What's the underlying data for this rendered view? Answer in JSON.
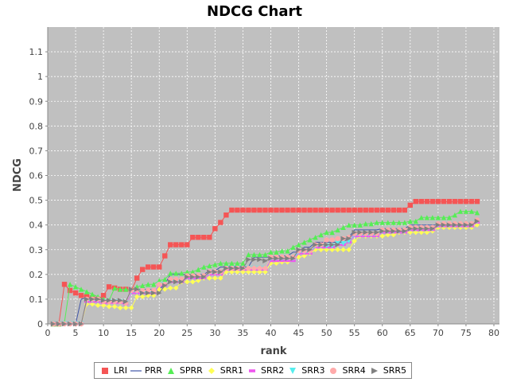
{
  "chart_data": {
    "type": "line",
    "title": "NDCG Chart",
    "xlabel": "rank",
    "ylabel": "NDCG",
    "xlim": [
      0,
      81
    ],
    "ylim": [
      0,
      1.2
    ],
    "xticks": [
      0,
      5,
      10,
      15,
      20,
      25,
      30,
      35,
      40,
      45,
      50,
      55,
      60,
      65,
      70,
      75,
      80
    ],
    "yticks": [
      0,
      0.1,
      0.2,
      0.3,
      0.4,
      0.5,
      0.6,
      0.7,
      0.8,
      0.9,
      1,
      1.1
    ],
    "grid": true,
    "legend_position": "bottom",
    "plot_background": "#c0c0c0",
    "series": [
      {
        "name": "LRI",
        "color": "#f55555",
        "marker": "square",
        "steps": [
          [
            1,
            0
          ],
          [
            2,
            0
          ],
          [
            3,
            0.16
          ],
          [
            4,
            0.135
          ],
          [
            5,
            0.125
          ],
          [
            6,
            0.115
          ],
          [
            7,
            0.11
          ],
          [
            8,
            0.105
          ],
          [
            9,
            0.1
          ],
          [
            10,
            0.115
          ],
          [
            11,
            0.15
          ],
          [
            12,
            0.145
          ],
          [
            13,
            0.14
          ],
          [
            14,
            0.14
          ],
          [
            15,
            0.135
          ],
          [
            16,
            0.185
          ],
          [
            17,
            0.22
          ],
          [
            18,
            0.23
          ],
          [
            19,
            0.23
          ],
          [
            20,
            0.23
          ],
          [
            21,
            0.275
          ],
          [
            22,
            0.32
          ],
          [
            23,
            0.32
          ],
          [
            24,
            0.32
          ],
          [
            25,
            0.32
          ],
          [
            26,
            0.35
          ],
          [
            27,
            0.35
          ],
          [
            28,
            0.35
          ],
          [
            29,
            0.35
          ],
          [
            30,
            0.385
          ],
          [
            31,
            0.41
          ],
          [
            32,
            0.44
          ],
          [
            33,
            0.46
          ],
          [
            57,
            0.46
          ],
          [
            58,
            0.46
          ],
          [
            64,
            0.46
          ],
          [
            65,
            0.48
          ],
          [
            66,
            0.495
          ],
          [
            77,
            0.495
          ]
        ]
      },
      {
        "name": "PRR",
        "color": "#4055a8",
        "marker": "none",
        "steps": [
          [
            1,
            0
          ],
          [
            5,
            0
          ],
          [
            6,
            0.1
          ],
          [
            7,
            0.105
          ],
          [
            8,
            0.1
          ],
          [
            9,
            0.095
          ],
          [
            10,
            0.09
          ],
          [
            11,
            0.09
          ],
          [
            12,
            0.085
          ],
          [
            13,
            0.085
          ],
          [
            14,
            0.085
          ],
          [
            15,
            0.14
          ],
          [
            21,
            0.16
          ],
          [
            22,
            0.2
          ],
          [
            25,
            0.2
          ],
          [
            29,
            0.215
          ],
          [
            31,
            0.23
          ],
          [
            33,
            0.23
          ],
          [
            36,
            0.23
          ],
          [
            37,
            0.27
          ],
          [
            40,
            0.27
          ],
          [
            41,
            0.275
          ],
          [
            44,
            0.29
          ],
          [
            46,
            0.31
          ],
          [
            48,
            0.33
          ],
          [
            54,
            0.35
          ],
          [
            55,
            0.38
          ],
          [
            60,
            0.385
          ],
          [
            65,
            0.4
          ],
          [
            72,
            0.4
          ],
          [
            77,
            0.42
          ]
        ]
      },
      {
        "name": "SPRR",
        "color": "#55ee55",
        "marker": "triangle-up",
        "steps": [
          [
            1,
            0
          ],
          [
            2,
            0
          ],
          [
            3,
            0.005
          ],
          [
            4,
            0.16
          ],
          [
            5,
            0.15
          ],
          [
            6,
            0.14
          ],
          [
            7,
            0.13
          ],
          [
            8,
            0.12
          ],
          [
            9,
            0.11
          ],
          [
            10,
            0.1
          ],
          [
            11,
            0.095
          ],
          [
            12,
            0.145
          ],
          [
            13,
            0.14
          ],
          [
            14,
            0.14
          ],
          [
            15,
            0.135
          ],
          [
            16,
            0.15
          ],
          [
            17,
            0.155
          ],
          [
            18,
            0.16
          ],
          [
            19,
            0.16
          ],
          [
            20,
            0.175
          ],
          [
            21,
            0.18
          ],
          [
            22,
            0.205
          ],
          [
            23,
            0.205
          ],
          [
            24,
            0.205
          ],
          [
            25,
            0.21
          ],
          [
            26,
            0.21
          ],
          [
            27,
            0.22
          ],
          [
            28,
            0.23
          ],
          [
            29,
            0.235
          ],
          [
            30,
            0.24
          ],
          [
            31,
            0.245
          ],
          [
            32,
            0.245
          ],
          [
            33,
            0.245
          ],
          [
            34,
            0.245
          ],
          [
            35,
            0.245
          ],
          [
            36,
            0.28
          ],
          [
            37,
            0.28
          ],
          [
            38,
            0.28
          ],
          [
            39,
            0.28
          ],
          [
            40,
            0.29
          ],
          [
            41,
            0.29
          ],
          [
            42,
            0.295
          ],
          [
            43,
            0.295
          ],
          [
            44,
            0.31
          ],
          [
            45,
            0.32
          ],
          [
            46,
            0.33
          ],
          [
            47,
            0.34
          ],
          [
            48,
            0.35
          ],
          [
            49,
            0.36
          ],
          [
            50,
            0.37
          ],
          [
            51,
            0.37
          ],
          [
            52,
            0.38
          ],
          [
            53,
            0.39
          ],
          [
            54,
            0.4
          ],
          [
            55,
            0.4
          ],
          [
            56,
            0.4
          ],
          [
            57,
            0.405
          ],
          [
            58,
            0.405
          ],
          [
            59,
            0.41
          ],
          [
            60,
            0.41
          ],
          [
            61,
            0.41
          ],
          [
            62,
            0.41
          ],
          [
            63,
            0.41
          ],
          [
            64,
            0.41
          ],
          [
            65,
            0.415
          ],
          [
            66,
            0.415
          ],
          [
            67,
            0.43
          ],
          [
            68,
            0.43
          ],
          [
            69,
            0.43
          ],
          [
            70,
            0.43
          ],
          [
            71,
            0.43
          ],
          [
            72,
            0.43
          ],
          [
            73,
            0.44
          ],
          [
            74,
            0.455
          ],
          [
            75,
            0.455
          ],
          [
            76,
            0.455
          ],
          [
            77,
            0.45
          ]
        ]
      },
      {
        "name": "SRR1",
        "color": "#ffff55",
        "marker": "diamond",
        "steps": [
          [
            1,
            0
          ],
          [
            2,
            0
          ],
          [
            3,
            0
          ],
          [
            4,
            0
          ],
          [
            5,
            0
          ],
          [
            6,
            0
          ],
          [
            7,
            0.08
          ],
          [
            8,
            0.08
          ],
          [
            9,
            0.075
          ],
          [
            10,
            0.075
          ],
          [
            11,
            0.07
          ],
          [
            12,
            0.07
          ],
          [
            13,
            0.065
          ],
          [
            14,
            0.065
          ],
          [
            15,
            0.065
          ],
          [
            16,
            0.11
          ],
          [
            17,
            0.11
          ],
          [
            18,
            0.115
          ],
          [
            19,
            0.115
          ],
          [
            20,
            0.14
          ],
          [
            21,
            0.14
          ],
          [
            22,
            0.145
          ],
          [
            23,
            0.145
          ],
          [
            24,
            0.17
          ],
          [
            25,
            0.17
          ],
          [
            26,
            0.17
          ],
          [
            27,
            0.175
          ],
          [
            28,
            0.185
          ],
          [
            29,
            0.185
          ],
          [
            30,
            0.185
          ],
          [
            31,
            0.185
          ],
          [
            32,
            0.21
          ],
          [
            33,
            0.21
          ],
          [
            34,
            0.21
          ],
          [
            35,
            0.21
          ],
          [
            36,
            0.21
          ],
          [
            37,
            0.21
          ],
          [
            38,
            0.21
          ],
          [
            39,
            0.21
          ],
          [
            40,
            0.245
          ],
          [
            41,
            0.245
          ],
          [
            42,
            0.25
          ],
          [
            43,
            0.25
          ],
          [
            44,
            0.27
          ],
          [
            45,
            0.27
          ],
          [
            46,
            0.275
          ],
          [
            47,
            0.285
          ],
          [
            48,
            0.3
          ],
          [
            49,
            0.3
          ],
          [
            50,
            0.3
          ],
          [
            51,
            0.3
          ],
          [
            52,
            0.3
          ],
          [
            53,
            0.3
          ],
          [
            54,
            0.3
          ],
          [
            55,
            0.335
          ],
          [
            56,
            0.355
          ],
          [
            57,
            0.355
          ],
          [
            58,
            0.355
          ],
          [
            59,
            0.355
          ],
          [
            60,
            0.355
          ],
          [
            61,
            0.36
          ],
          [
            62,
            0.36
          ],
          [
            63,
            0.37
          ],
          [
            64,
            0.37
          ],
          [
            65,
            0.37
          ],
          [
            66,
            0.37
          ],
          [
            67,
            0.37
          ],
          [
            68,
            0.37
          ],
          [
            69,
            0.375
          ],
          [
            70,
            0.39
          ],
          [
            71,
            0.39
          ],
          [
            72,
            0.39
          ],
          [
            73,
            0.39
          ],
          [
            74,
            0.39
          ],
          [
            75,
            0.39
          ],
          [
            76,
            0.39
          ],
          [
            77,
            0.4
          ]
        ]
      },
      {
        "name": "SRR2",
        "color": "#ee55ee",
        "marker": "dash",
        "steps": [
          [
            1,
            0
          ],
          [
            6,
            0
          ],
          [
            7,
            0.09
          ],
          [
            10,
            0.085
          ],
          [
            14,
            0.08
          ],
          [
            15,
            0.125
          ],
          [
            20,
            0.155
          ],
          [
            22,
            0.17
          ],
          [
            25,
            0.185
          ],
          [
            29,
            0.2
          ],
          [
            32,
            0.22
          ],
          [
            39,
            0.22
          ],
          [
            40,
            0.255
          ],
          [
            45,
            0.285
          ],
          [
            48,
            0.31
          ],
          [
            52,
            0.32
          ],
          [
            54,
            0.33
          ],
          [
            55,
            0.355
          ],
          [
            60,
            0.37
          ],
          [
            65,
            0.38
          ],
          [
            70,
            0.395
          ],
          [
            77,
            0.41
          ]
        ]
      },
      {
        "name": "SRR3",
        "color": "#55eeee",
        "marker": "triangle-down",
        "steps": [
          [
            1,
            0
          ],
          [
            6,
            0
          ],
          [
            7,
            0.095
          ],
          [
            10,
            0.09
          ],
          [
            14,
            0.085
          ],
          [
            15,
            0.13
          ],
          [
            20,
            0.16
          ],
          [
            22,
            0.175
          ],
          [
            25,
            0.19
          ],
          [
            29,
            0.205
          ],
          [
            32,
            0.225
          ],
          [
            39,
            0.225
          ],
          [
            40,
            0.265
          ],
          [
            45,
            0.29
          ],
          [
            48,
            0.315
          ],
          [
            52,
            0.325
          ],
          [
            54,
            0.335
          ],
          [
            55,
            0.36
          ],
          [
            60,
            0.375
          ],
          [
            65,
            0.385
          ],
          [
            70,
            0.4
          ],
          [
            77,
            0.415
          ]
        ]
      },
      {
        "name": "SRR4",
        "color": "#ffaaaa",
        "marker": "circle",
        "steps": [
          [
            1,
            0
          ],
          [
            6,
            0
          ],
          [
            7,
            0.1
          ],
          [
            10,
            0.09
          ],
          [
            14,
            0.085
          ],
          [
            15,
            0.135
          ],
          [
            20,
            0.16
          ],
          [
            22,
            0.18
          ],
          [
            25,
            0.195
          ],
          [
            29,
            0.21
          ],
          [
            32,
            0.225
          ],
          [
            39,
            0.225
          ],
          [
            40,
            0.27
          ],
          [
            45,
            0.295
          ],
          [
            48,
            0.32
          ],
          [
            50,
            0.34
          ],
          [
            52,
            0.345
          ],
          [
            54,
            0.35
          ],
          [
            55,
            0.365
          ],
          [
            60,
            0.38
          ],
          [
            65,
            0.39
          ],
          [
            70,
            0.405
          ],
          [
            77,
            0.42
          ]
        ]
      },
      {
        "name": "SRR5",
        "color": "#808080",
        "marker": "triangle-right",
        "steps": [
          [
            1,
            0
          ],
          [
            6,
            0
          ],
          [
            7,
            0.1
          ],
          [
            10,
            0.095
          ],
          [
            14,
            0.09
          ],
          [
            15,
            0.14
          ],
          [
            17,
            0.125
          ],
          [
            19,
            0.125
          ],
          [
            21,
            0.155
          ],
          [
            22,
            0.17
          ],
          [
            25,
            0.19
          ],
          [
            29,
            0.21
          ],
          [
            32,
            0.225
          ],
          [
            36,
            0.26
          ],
          [
            39,
            0.255
          ],
          [
            40,
            0.265
          ],
          [
            45,
            0.3
          ],
          [
            48,
            0.32
          ],
          [
            53,
            0.345
          ],
          [
            55,
            0.37
          ],
          [
            60,
            0.375
          ],
          [
            65,
            0.385
          ],
          [
            70,
            0.4
          ],
          [
            77,
            0.415
          ]
        ]
      }
    ]
  }
}
